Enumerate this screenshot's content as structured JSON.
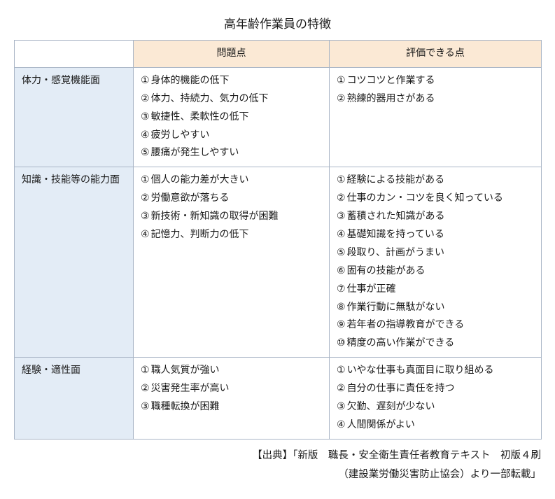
{
  "title": "高年齢作業員の特徴",
  "colors": {
    "header_bg": "#fbe9d5",
    "rowhead_bg": "#e3ecf6",
    "border": "#a9b5c6",
    "text": "#1a1a1a",
    "bg": "#ffffff"
  },
  "columns": {
    "problems": "問題点",
    "merits": "評価できる点"
  },
  "circled": [
    "①",
    "②",
    "③",
    "④",
    "⑤",
    "⑥",
    "⑦",
    "⑧",
    "⑨",
    "⑩"
  ],
  "rows": [
    {
      "label": "体力・感覚機能面",
      "problems": [
        "身体的機能の低下",
        "体力、持続力、気力の低下",
        "敏捷性、柔軟性の低下",
        "疲労しやすい",
        "腰痛が発生しやすい"
      ],
      "merits": [
        "コツコツと作業する",
        "熟練的器用さがある"
      ]
    },
    {
      "label": "知識・技能等の能力面",
      "problems": [
        "個人の能力差が大きい",
        "労働意欲が落ちる",
        "新技術・新知識の取得が困難",
        "記憶力、判断力の低下"
      ],
      "merits": [
        "経験による技能がある",
        "仕事のカン・コツを良く知っている",
        "蓄積された知識がある",
        "基礎知識を持っている",
        "段取り、計画がうまい",
        "固有の技能がある",
        "仕事が正確",
        "作業行動に無駄がない",
        "若年者の指導教育ができる",
        "精度の高い作業ができる"
      ]
    },
    {
      "label": "経験・適性面",
      "problems": [
        "職人気質が強い",
        "災害発生率が高い",
        "職種転換が困難"
      ],
      "merits": [
        "いやな仕事も真面目に取り組める",
        "自分の仕事に責任を持つ",
        "欠勤、遅刻が少ない",
        "人間関係がよい"
      ]
    }
  ],
  "source": {
    "line1": "【出典】「新版　職長・安全衛生責任者教育テキスト　初版４刷",
    "line2": "（建設業労働災害防止協会）より一部転載」"
  },
  "col_widths": {
    "rowhead": 170,
    "problems": 280,
    "merits": 303
  }
}
